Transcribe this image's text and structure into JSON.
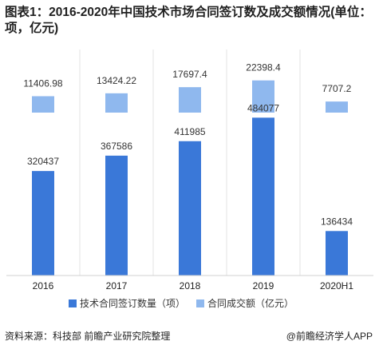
{
  "title": "图表1：2016-2020年中国技术市场合同签订数及成交额情况(单位：项，亿元)",
  "chart_data": {
    "type": "bar",
    "categories": [
      "2016",
      "2017",
      "2018",
      "2019",
      "2020H1"
    ],
    "series": [
      {
        "name": "技术合同签订数量（项）",
        "values": [
          320437,
          367586,
          411985,
          484077,
          136434
        ],
        "color": "#3a78d8"
      },
      {
        "name": "合同成交额（亿元）",
        "values": [
          11406.98,
          13424.22,
          17697.4,
          22398.4,
          7707.2
        ],
        "color": "#8fb8ee"
      }
    ],
    "value_labels": {
      "contracts": [
        "320437",
        "367586",
        "411985",
        "484077",
        "136434"
      ],
      "amount": [
        "11406.98",
        "13424.22",
        "17697.4",
        "22398.4",
        "7707.2"
      ]
    },
    "ylim_contracts": [
      0,
      600000
    ],
    "ylim_amount": [
      0,
      25000
    ],
    "legend_position": "bottom",
    "grid": false
  },
  "footer": {
    "source": "资料来源：科技部 前瞻产业研究院整理",
    "brand": "@前瞻经济学人APP"
  }
}
